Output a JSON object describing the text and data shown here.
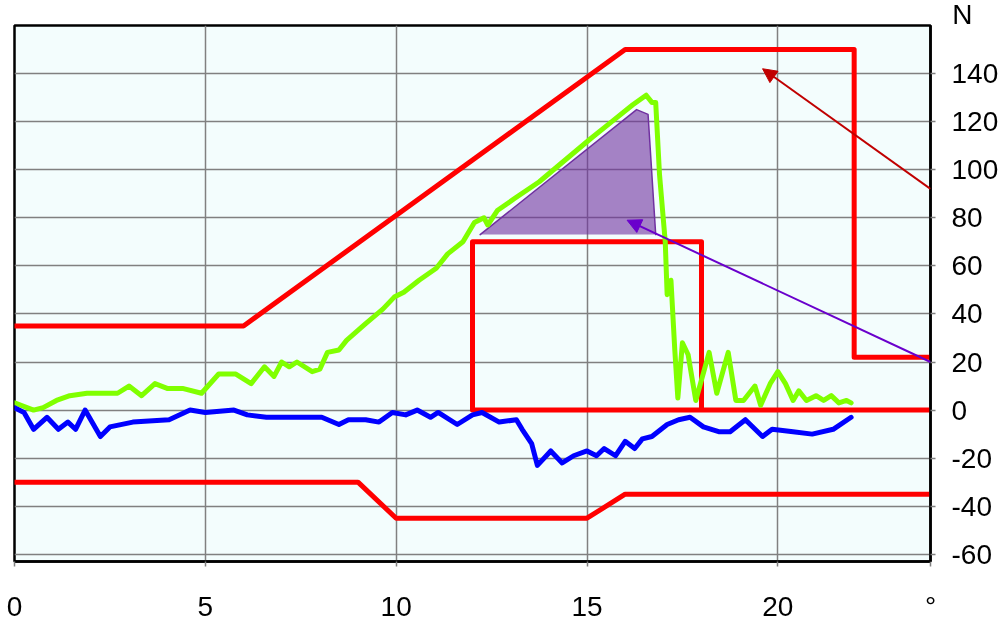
{
  "chart_data": {
    "type": "line",
    "xlabel": "°",
    "ylabel": "N",
    "xlim": [
      0,
      24
    ],
    "ylim": [
      -63,
      160
    ],
    "xticks": [
      0,
      5,
      10,
      15,
      20
    ],
    "yticks": [
      -60,
      -40,
      -20,
      0,
      20,
      40,
      60,
      80,
      100,
      120,
      140
    ],
    "grid": true,
    "series": [
      {
        "color": "#ff0000",
        "x": [
          0,
          6,
          16,
          22,
          22,
          24
        ],
        "values": [
          35,
          35,
          150,
          150,
          22,
          22
        ]
      },
      {
        "color": "#ff0000",
        "x": [
          0,
          9,
          10,
          15,
          16,
          24
        ],
        "values": [
          -30,
          -30,
          -45,
          -45,
          -35,
          -35
        ]
      },
      {
        "color": "#ff0000",
        "x": [
          24,
          12,
          12,
          18,
          18
        ],
        "values": [
          0,
          0,
          70,
          70,
          0
        ]
      },
      {
        "color": "#7030a0",
        "x": [
          12.2,
          16.3,
          16.6,
          16.8
        ],
        "values": [
          73,
          125,
          123,
          73
        ],
        "lower": [
          73,
          73,
          73,
          73
        ],
        "upper": [
          73,
          125,
          123,
          73
        ]
      },
      {
        "color": "#80ff00",
        "x": [
          0,
          0.5,
          0.75,
          1.1,
          1.45,
          1.9,
          2.7,
          3,
          3.33,
          3.68,
          4,
          4.4,
          4.9,
          5.35,
          5.8,
          6.2,
          6.55,
          6.8,
          7,
          7.2,
          7.4,
          7.8,
          8,
          8.2,
          8.5,
          8.7,
          9.2,
          9.65,
          9.95,
          10.2,
          10.6,
          11.05,
          11.35,
          11.75,
          12.05,
          12.3,
          12.4,
          12.65,
          13.1,
          13.75,
          14.35,
          15.1,
          15.65,
          16.2,
          16.55,
          16.7,
          16.8,
          16.9,
          17.05,
          17.1,
          17.2,
          17.3,
          17.38,
          17.5,
          17.65,
          17.85,
          18.2,
          18.4,
          18.7,
          18.9,
          19.1,
          19.4,
          19.55,
          19.8,
          20,
          20.2,
          20.4,
          20.55,
          20.75,
          21,
          21.2,
          21.4,
          21.6,
          21.8,
          21.92
        ],
        "values": [
          3,
          0,
          1,
          4,
          6,
          7,
          7,
          10,
          6,
          11,
          9,
          9,
          7,
          15,
          15,
          11,
          18,
          14,
          20,
          18,
          20,
          16,
          17,
          24,
          25,
          29,
          36,
          42,
          47,
          49,
          54,
          59,
          65,
          70,
          78,
          80,
          77,
          83,
          88,
          95,
          103,
          113,
          120,
          127,
          131,
          128,
          128,
          98,
          70,
          48,
          54,
          25,
          5,
          28,
          23,
          4,
          24,
          7,
          24,
          4,
          4,
          10,
          2,
          11,
          16,
          11,
          4,
          8,
          4,
          6,
          4,
          6,
          3,
          4,
          3
        ]
      },
      {
        "color": "#0000ff",
        "x": [
          0,
          0.25,
          0.5,
          0.85,
          1.15,
          1.4,
          1.6,
          1.85,
          2.25,
          2.5,
          3.1,
          4.05,
          4.6,
          5,
          5.75,
          6.1,
          6.6,
          7.3,
          8.05,
          8.5,
          8.75,
          9.2,
          9.55,
          9.9,
          10.25,
          10.55,
          10.9,
          11.1,
          11.6,
          12,
          12.25,
          12.7,
          13.15,
          13.3,
          13.55,
          13.7,
          14.05,
          14.35,
          14.65,
          15,
          15.25,
          15.45,
          15.75,
          16,
          16.25,
          16.45,
          16.7,
          17.1,
          17.4,
          17.7,
          18.05,
          18.45,
          18.75,
          19.15,
          19.6,
          19.85,
          20.4,
          20.9,
          21.45,
          21.92
        ],
        "values": [
          1,
          -1,
          -8,
          -3,
          -8,
          -5,
          -8,
          0,
          -11,
          -7,
          -5,
          -4,
          0,
          -1,
          0,
          -2,
          -3,
          -3,
          -3,
          -6,
          -4,
          -4,
          -5,
          -1,
          -2,
          0,
          -3,
          -1,
          -6,
          -2,
          -1,
          -5,
          -4,
          -8,
          -14,
          -23,
          -17,
          -22,
          -19,
          -17,
          -19,
          -16,
          -19,
          -13,
          -16,
          -12,
          -11,
          -6,
          -4,
          -3,
          -7,
          -9,
          -9,
          -4,
          -11,
          -8,
          -9,
          -10,
          -8,
          -3
        ]
      }
    ]
  }
}
